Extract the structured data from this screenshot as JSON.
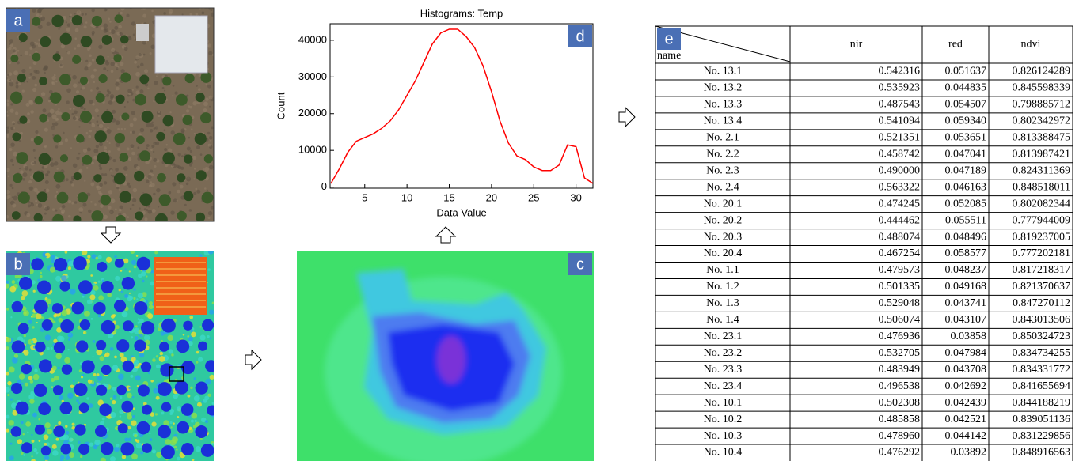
{
  "panel_labels": [
    "a",
    "b",
    "c",
    "d",
    "e"
  ],
  "chart_data": {
    "type": "line",
    "title": "Histograms: Temp",
    "x_label": "Data Value",
    "y_label": "Count",
    "x": [
      1,
      1.5,
      2,
      3,
      4,
      5,
      6,
      7,
      8,
      9,
      10,
      11,
      12,
      13,
      14,
      15,
      16,
      17,
      18,
      19,
      20,
      21,
      22,
      23,
      24,
      25,
      26,
      27,
      28,
      29,
      30,
      31,
      32
    ],
    "values": [
      1000,
      3000,
      5000,
      9500,
      12500,
      13500,
      14500,
      16000,
      18000,
      21000,
      25000,
      29000,
      34000,
      39000,
      42000,
      43000,
      43000,
      41000,
      38000,
      33000,
      26000,
      18000,
      12000,
      8500,
      7500,
      5500,
      4500,
      4500,
      6000,
      11500,
      11000,
      2500,
      1000
    ],
    "color": "#ff0000",
    "xlim": [
      0.9,
      32
    ],
    "ylim": [
      -300,
      44500
    ],
    "xticks": [
      5,
      10,
      15,
      20,
      25,
      30
    ],
    "yticks": [
      0,
      10000,
      20000,
      30000,
      40000
    ]
  },
  "table": {
    "header_label": "name",
    "columns": [
      "nir",
      "red",
      "ndvi"
    ],
    "rows": [
      [
        "No. 13.1",
        "0.542316",
        "0.051637",
        "0.826124289"
      ],
      [
        "No. 13.2",
        "0.535923",
        "0.044835",
        "0.845598339"
      ],
      [
        "No. 13.3",
        "0.487543",
        "0.054507",
        "0.798885712"
      ],
      [
        "No. 13.4",
        "0.541094",
        "0.059340",
        "0.802342972"
      ],
      [
        "No. 2.1",
        "0.521351",
        "0.053651",
        "0.813388475"
      ],
      [
        "No. 2.2",
        "0.458742",
        "0.047041",
        "0.813987421"
      ],
      [
        "No. 2.3",
        "0.490000",
        "0.047189",
        "0.824311369"
      ],
      [
        "No. 2.4",
        "0.563322",
        "0.046163",
        "0.848518011"
      ],
      [
        "No. 20.1",
        "0.474245",
        "0.052085",
        "0.802082344"
      ],
      [
        "No. 20.2",
        "0.444462",
        "0.055511",
        "0.777944009"
      ],
      [
        "No. 20.3",
        "0.488074",
        "0.048496",
        "0.819237005"
      ],
      [
        "No. 20.4",
        "0.467254",
        "0.058577",
        "0.777202181"
      ],
      [
        "No. 1.1",
        "0.479573",
        "0.048237",
        "0.817218317"
      ],
      [
        "No. 1.2",
        "0.501335",
        "0.049168",
        "0.821370637"
      ],
      [
        "No. 1.3",
        "0.529048",
        "0.043741",
        "0.847270112"
      ],
      [
        "No. 1.4",
        "0.506074",
        "0.043107",
        "0.843013506"
      ],
      [
        "No. 23.1",
        "0.476936",
        "0.03858",
        "0.850324723"
      ],
      [
        "No. 23.2",
        "0.532705",
        "0.047984",
        "0.834734255"
      ],
      [
        "No. 23.3",
        "0.483949",
        "0.043708",
        "0.834331772"
      ],
      [
        "No. 23.4",
        "0.496538",
        "0.042692",
        "0.841655694"
      ],
      [
        "No. 10.1",
        "0.502308",
        "0.042439",
        "0.844188219"
      ],
      [
        "No. 10.2",
        "0.485858",
        "0.042521",
        "0.839051136"
      ],
      [
        "No. 10.3",
        "0.478960",
        "0.044142",
        "0.831229856"
      ],
      [
        "No. 10.4",
        "0.476292",
        "0.03892",
        "0.848916563"
      ]
    ]
  }
}
